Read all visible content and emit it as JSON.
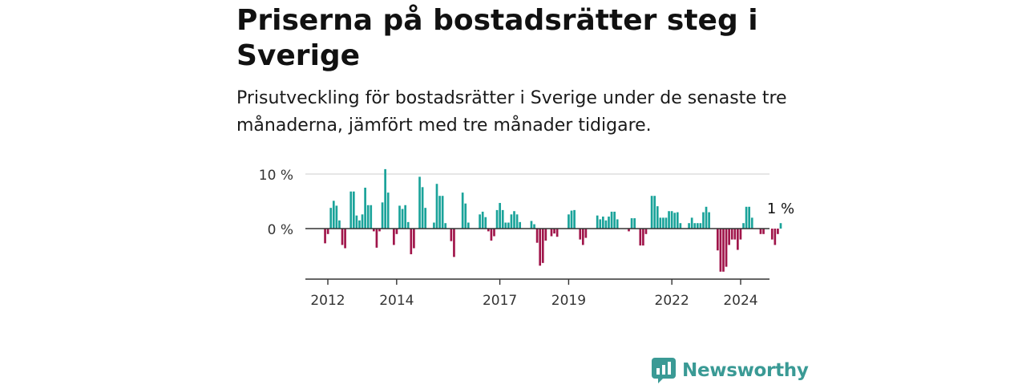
{
  "title": "Priserna på bostadsrätter steg i Sverige",
  "subtitle": "Prisutveckling för bostadsrätter i Sverige under de senaste tre månaderna, jämfört med tre månader tidigare.",
  "logo": {
    "text": "Newsworthy",
    "icon": "newsworthy-logo-icon"
  },
  "colors": {
    "positive": "#1aa39a",
    "negative": "#a0154a",
    "grid": "#cccccc",
    "axis": "#333333",
    "brand": "#3a9a95"
  },
  "chart_data": {
    "type": "bar",
    "title": "Priserna på bostadsrätter steg i Sverige",
    "xlabel": "",
    "ylabel": "",
    "ylim": [
      -9.2,
      10
    ],
    "y_ticks": [
      {
        "value": 10,
        "label": "10 %"
      },
      {
        "value": 0,
        "label": "0 %"
      }
    ],
    "x_ticks": [
      {
        "x": 2012,
        "label": "2012"
      },
      {
        "x": 2014,
        "label": "2014"
      },
      {
        "x": 2017,
        "label": "2017"
      },
      {
        "x": 2019,
        "label": "2019"
      },
      {
        "x": 2022,
        "label": "2022"
      },
      {
        "x": 2024,
        "label": "2024"
      }
    ],
    "x_start": 2011.92,
    "x_step": 0.0833,
    "annotation": {
      "label": "1 %",
      "value": 1
    },
    "values": [
      -2.7,
      -1,
      3.8,
      5.1,
      4.2,
      1.5,
      -3,
      -3.6,
      0,
      6.8,
      6.8,
      2.4,
      1.5,
      2.6,
      7.5,
      4.3,
      4.3,
      -0.5,
      -3.5,
      -0.5,
      4.8,
      10.9,
      6.6,
      0,
      -3,
      -1,
      4.2,
      3.6,
      4.3,
      1.2,
      -4.7,
      -3.6,
      0,
      9.5,
      7.6,
      3.8,
      0,
      0,
      1.1,
      8.2,
      6,
      6,
      1,
      0,
      -2.3,
      -5.2,
      0,
      0,
      6.6,
      4.6,
      1.1,
      0,
      0,
      0,
      2.6,
      3.1,
      2.1,
      -0.5,
      -2.2,
      -1.4,
      3.4,
      4.7,
      3.4,
      1.1,
      1.1,
      2.6,
      3.2,
      2.6,
      1.2,
      0,
      0,
      0,
      1.4,
      0.8,
      -2.6,
      -6.8,
      -6.3,
      -2.2,
      0,
      -1.4,
      -0.9,
      -1.5,
      0,
      0,
      0,
      2.6,
      3.3,
      3.4,
      0,
      -2,
      -3,
      -1.7,
      0,
      0,
      0,
      2.4,
      1.7,
      2.2,
      1.5,
      2.2,
      3.1,
      3.1,
      1.7,
      0,
      0,
      0,
      -0.5,
      1.9,
      1.9,
      0,
      -3.1,
      -3.1,
      -1,
      0,
      6,
      6,
      4.1,
      2,
      2,
      2,
      3.2,
      3.2,
      2.9,
      3,
      1,
      0,
      0,
      1,
      2,
      1,
      1,
      1,
      3,
      4,
      3,
      0,
      0,
      -4,
      -7.9,
      -7.9,
      -7,
      -3,
      -2,
      -2,
      -3.9,
      -2,
      1,
      4,
      4,
      2,
      0,
      0,
      -1,
      -1,
      0,
      0,
      -2,
      -3,
      -1,
      1
    ]
  }
}
